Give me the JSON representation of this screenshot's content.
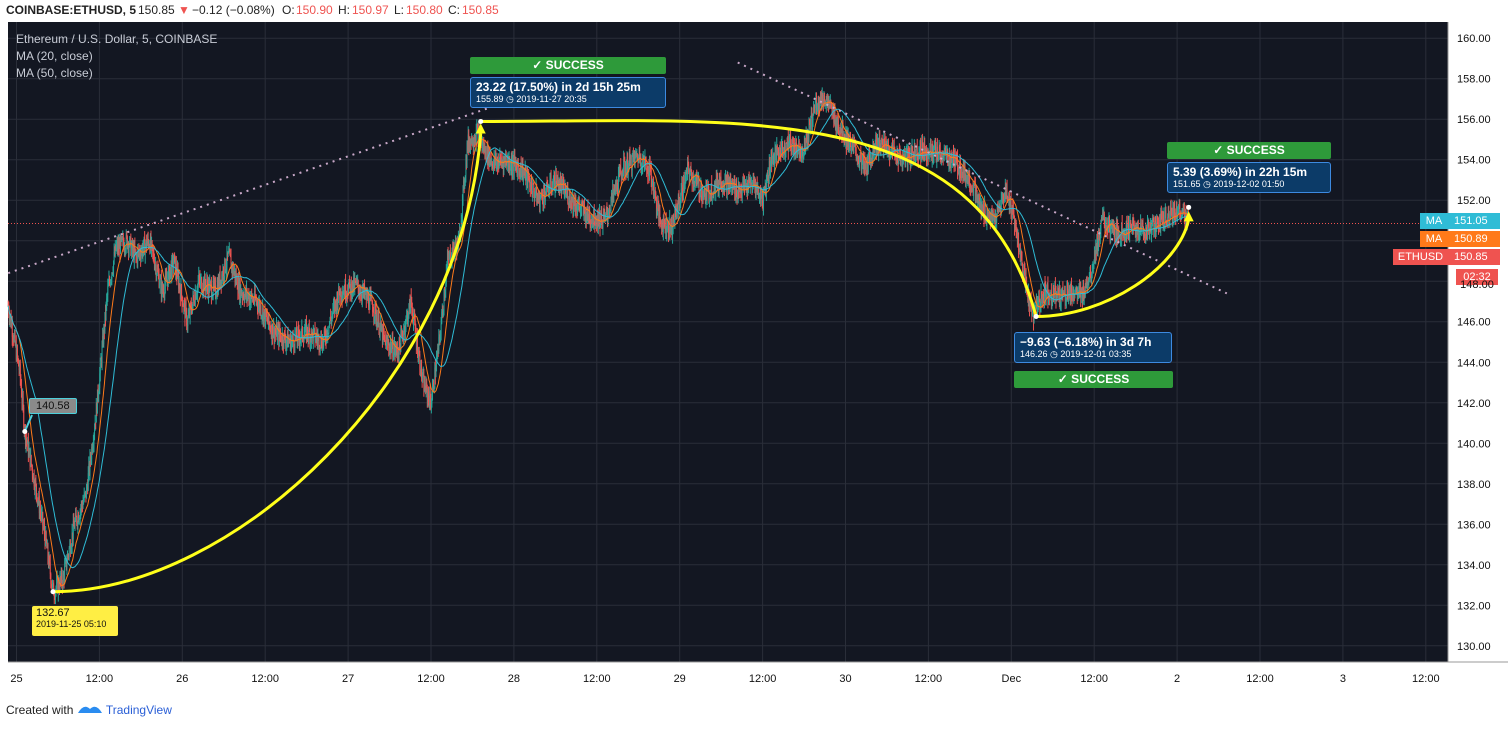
{
  "header": {
    "symbol": "COINBASE:ETHUSD, 5",
    "last": "150.85",
    "change": "−0.12 (−0.08%)",
    "o_label": "O:",
    "o_value": "150.90",
    "h_label": "H:",
    "h_value": "150.97",
    "l_label": "L:",
    "l_value": "150.80",
    "c_label": "C:",
    "c_value": "150.85"
  },
  "legend": {
    "title": "Ethereum / U.S. Dollar, 5, COINBASE",
    "ma20": "MA (20, close)",
    "ma50": "MA (50, close)"
  },
  "annotations": {
    "start_price": "140.58",
    "low_price": "132.67",
    "low_date": "2019-11-25 05:10",
    "peak_success": "✓ SUCCESS",
    "peak_main": "23.22 (17.50%) in 2d 15h 25m",
    "peak_sub": "155.89 ◷ 2019-11-27  20:35",
    "dip_main": "−9.63 (−6.18%) in 3d 7h",
    "dip_sub": "146.26 ◷ 2019-12-01  03:35",
    "dip_success": "✓ SUCCESS",
    "rec_success": "✓ SUCCESS",
    "rec_main": "5.39 (3.69%) in 22h 15m",
    "rec_sub": "151.65 ◷ 2019-12-02  01:50"
  },
  "price_tags": {
    "ma1_label": "MA",
    "ma1_value": "151.05",
    "ma2_label": "MA",
    "ma2_value": "150.89",
    "eth_label": "ETHUSD",
    "eth_value": "150.85",
    "countdown": "02:32",
    "hidden_tick": "148.00"
  },
  "footer": {
    "created_with": "Created with",
    "brand": "TradingView"
  },
  "colors": {
    "background": "#131722",
    "grid": "#2a2e39",
    "up": "#26a69a",
    "down": "#ef5350",
    "ma20": "#ff7a1a",
    "ma50": "#2fbcd6",
    "pattern": "#ffff1a",
    "success": "#2e9a3a",
    "annotation": "#0c3b68",
    "price_line": "#ef5350"
  },
  "chart_data": {
    "type": "candlestick",
    "symbol": "COINBASE:ETHUSD",
    "interval": "5",
    "ylim": [
      129.2,
      160.8
    ],
    "y_ticks": [
      "130.00",
      "132.00",
      "134.00",
      "136.00",
      "138.00",
      "140.00",
      "142.00",
      "144.00",
      "146.00",
      "148.00",
      "150.00",
      "152.00",
      "154.00",
      "156.00",
      "158.00",
      "160.00"
    ],
    "x_range_days": [
      0.0,
      8.8
    ],
    "x_ticks": [
      {
        "label": "25",
        "t": 0.0
      },
      {
        "label": "12:00",
        "t": 0.5
      },
      {
        "label": "26",
        "t": 1.0
      },
      {
        "label": "12:00",
        "t": 1.5
      },
      {
        "label": "27",
        "t": 2.0
      },
      {
        "label": "12:00",
        "t": 2.5
      },
      {
        "label": "28",
        "t": 3.0
      },
      {
        "label": "12:00",
        "t": 3.5
      },
      {
        "label": "29",
        "t": 4.0
      },
      {
        "label": "12:00",
        "t": 4.5
      },
      {
        "label": "30",
        "t": 5.0
      },
      {
        "label": "12:00",
        "t": 5.5
      },
      {
        "label": "Dec",
        "t": 6.0
      },
      {
        "label": "12:00",
        "t": 6.5
      },
      {
        "label": "2",
        "t": 7.0
      },
      {
        "label": "12:00",
        "t": 7.5
      },
      {
        "label": "3",
        "t": 8.0
      },
      {
        "label": "12:00",
        "t": 8.5
      }
    ],
    "price_path": [
      [
        -0.05,
        146.8
      ],
      [
        0.02,
        143.5
      ],
      [
        0.05,
        140.6
      ],
      [
        0.1,
        138.5
      ],
      [
        0.17,
        135.5
      ],
      [
        0.22,
        132.7
      ],
      [
        0.28,
        133.3
      ],
      [
        0.35,
        136.0
      ],
      [
        0.42,
        137.5
      ],
      [
        0.48,
        141.5
      ],
      [
        0.55,
        147.5
      ],
      [
        0.6,
        149.6
      ],
      [
        0.67,
        150.0
      ],
      [
        0.72,
        149.2
      ],
      [
        0.8,
        150.0
      ],
      [
        0.88,
        147.5
      ],
      [
        0.95,
        149.0
      ],
      [
        1.03,
        146.0
      ],
      [
        1.1,
        148.0
      ],
      [
        1.2,
        147.5
      ],
      [
        1.28,
        149.2
      ],
      [
        1.35,
        147.5
      ],
      [
        1.45,
        147.0
      ],
      [
        1.55,
        145.5
      ],
      [
        1.65,
        145.0
      ],
      [
        1.75,
        145.5
      ],
      [
        1.85,
        145.0
      ],
      [
        1.95,
        147.5
      ],
      [
        2.05,
        147.8
      ],
      [
        2.15,
        146.8
      ],
      [
        2.22,
        145.0
      ],
      [
        2.3,
        144.5
      ],
      [
        2.38,
        147.0
      ],
      [
        2.45,
        143.0
      ],
      [
        2.5,
        142.0
      ],
      [
        2.55,
        145.0
      ],
      [
        2.6,
        149.0
      ],
      [
        2.67,
        150.0
      ],
      [
        2.72,
        154.8
      ],
      [
        2.78,
        155.3
      ],
      [
        2.82,
        154.5
      ],
      [
        2.88,
        153.8
      ],
      [
        2.95,
        154.0
      ],
      [
        3.05,
        153.5
      ],
      [
        3.15,
        152.0
      ],
      [
        3.25,
        153.0
      ],
      [
        3.35,
        152.0
      ],
      [
        3.45,
        151.2
      ],
      [
        3.55,
        151.0
      ],
      [
        3.65,
        153.5
      ],
      [
        3.75,
        154.2
      ],
      [
        3.82,
        153.5
      ],
      [
        3.88,
        151.0
      ],
      [
        3.95,
        150.6
      ],
      [
        4.05,
        153.5
      ],
      [
        4.15,
        152.2
      ],
      [
        4.25,
        153.0
      ],
      [
        4.35,
        152.5
      ],
      [
        4.45,
        152.8
      ],
      [
        4.5,
        152.0
      ],
      [
        4.55,
        154.0
      ],
      [
        4.65,
        154.8
      ],
      [
        4.75,
        154.5
      ],
      [
        4.82,
        156.8
      ],
      [
        4.88,
        157.0
      ],
      [
        4.95,
        155.8
      ],
      [
        5.05,
        154.5
      ],
      [
        5.12,
        153.5
      ],
      [
        5.18,
        154.8
      ],
      [
        5.25,
        154.6
      ],
      [
        5.35,
        154.0
      ],
      [
        5.45,
        154.5
      ],
      [
        5.55,
        154.3
      ],
      [
        5.65,
        154.0
      ],
      [
        5.75,
        153.0
      ],
      [
        5.82,
        151.5
      ],
      [
        5.9,
        151.0
      ],
      [
        5.97,
        152.5
      ],
      [
        6.02,
        151.0
      ],
      [
        6.08,
        148.0
      ],
      [
        6.13,
        146.3
      ],
      [
        6.2,
        147.5
      ],
      [
        6.3,
        147.3
      ],
      [
        6.38,
        147.5
      ],
      [
        6.42,
        147.2
      ],
      [
        6.48,
        148.5
      ],
      [
        6.55,
        151.0
      ],
      [
        6.62,
        150.3
      ],
      [
        6.7,
        150.6
      ],
      [
        6.8,
        150.5
      ],
      [
        6.88,
        150.8
      ],
      [
        6.95,
        151.3
      ],
      [
        7.02,
        151.5
      ],
      [
        7.07,
        150.85
      ]
    ],
    "ma20_last": 150.89,
    "ma50_last": 151.05,
    "last_price": 150.85,
    "countdown": "02:32",
    "trend_lines": [
      {
        "style": "dotted",
        "from": [
          -0.05,
          148.4
        ],
        "to": [
          2.9,
          156.7
        ]
      },
      {
        "style": "dotted",
        "from": [
          4.35,
          158.8
        ],
        "to": [
          7.3,
          147.4
        ]
      }
    ],
    "measurements": [
      {
        "from": [
          0.22,
          132.67
        ],
        "to": [
          2.8,
          155.89
        ],
        "label": "23.22 (17.50%) in 2d 15h 25m",
        "result": "SUCCESS"
      },
      {
        "from": [
          2.8,
          155.89
        ],
        "to": [
          6.15,
          146.26
        ],
        "label": "−9.63 (−6.18%) in 3d 7h",
        "result": "SUCCESS"
      },
      {
        "from": [
          6.15,
          146.26
        ],
        "to": [
          7.07,
          151.65
        ],
        "label": "5.39 (3.69%) in 22h 15m",
        "result": "SUCCESS"
      }
    ],
    "point_labels": [
      {
        "t": 0.05,
        "price": 140.58,
        "text": "140.58"
      },
      {
        "t": 0.22,
        "price": 132.67,
        "text": "132.67",
        "date": "2019-11-25 05:10"
      }
    ],
    "grid": true,
    "legend_position": "top-left"
  }
}
